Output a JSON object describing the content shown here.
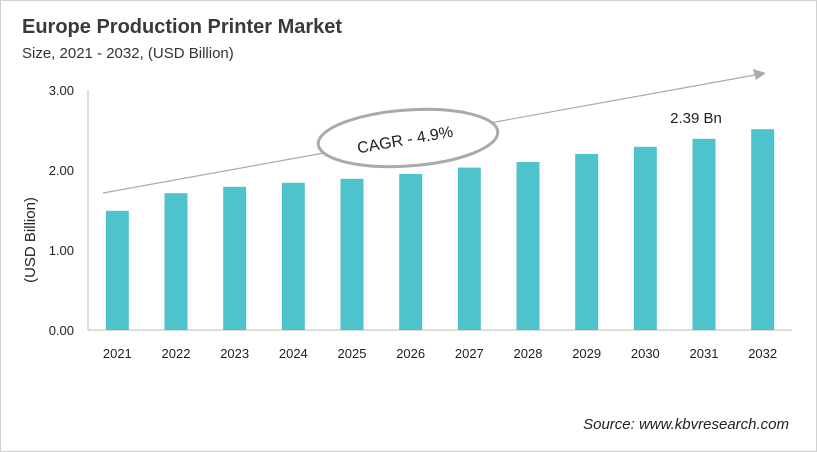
{
  "chart_data": {
    "type": "bar",
    "title": "Europe Production Printer Market",
    "subtitle": "Size, 2021 - 2032, (USD Billion)",
    "ylabel": "(USD Billion)",
    "xlabel": "",
    "categories": [
      "2021",
      "2022",
      "2023",
      "2024",
      "2025",
      "2026",
      "2027",
      "2028",
      "2029",
      "2030",
      "2031",
      "2032"
    ],
    "values": [
      1.49,
      1.71,
      1.79,
      1.84,
      1.89,
      1.95,
      2.03,
      2.1,
      2.2,
      2.29,
      2.39,
      2.51
    ],
    "ylim": [
      0,
      3
    ],
    "yticks": [
      "0.00",
      "1.00",
      "2.00",
      "3.00"
    ],
    "grid": false,
    "bar_color": "#4fc3cc",
    "annotations": {
      "cagr": "CAGR - 4.9%",
      "value_label": "2.39 Bn"
    }
  },
  "source": "Source: www.kbvresearch.com"
}
